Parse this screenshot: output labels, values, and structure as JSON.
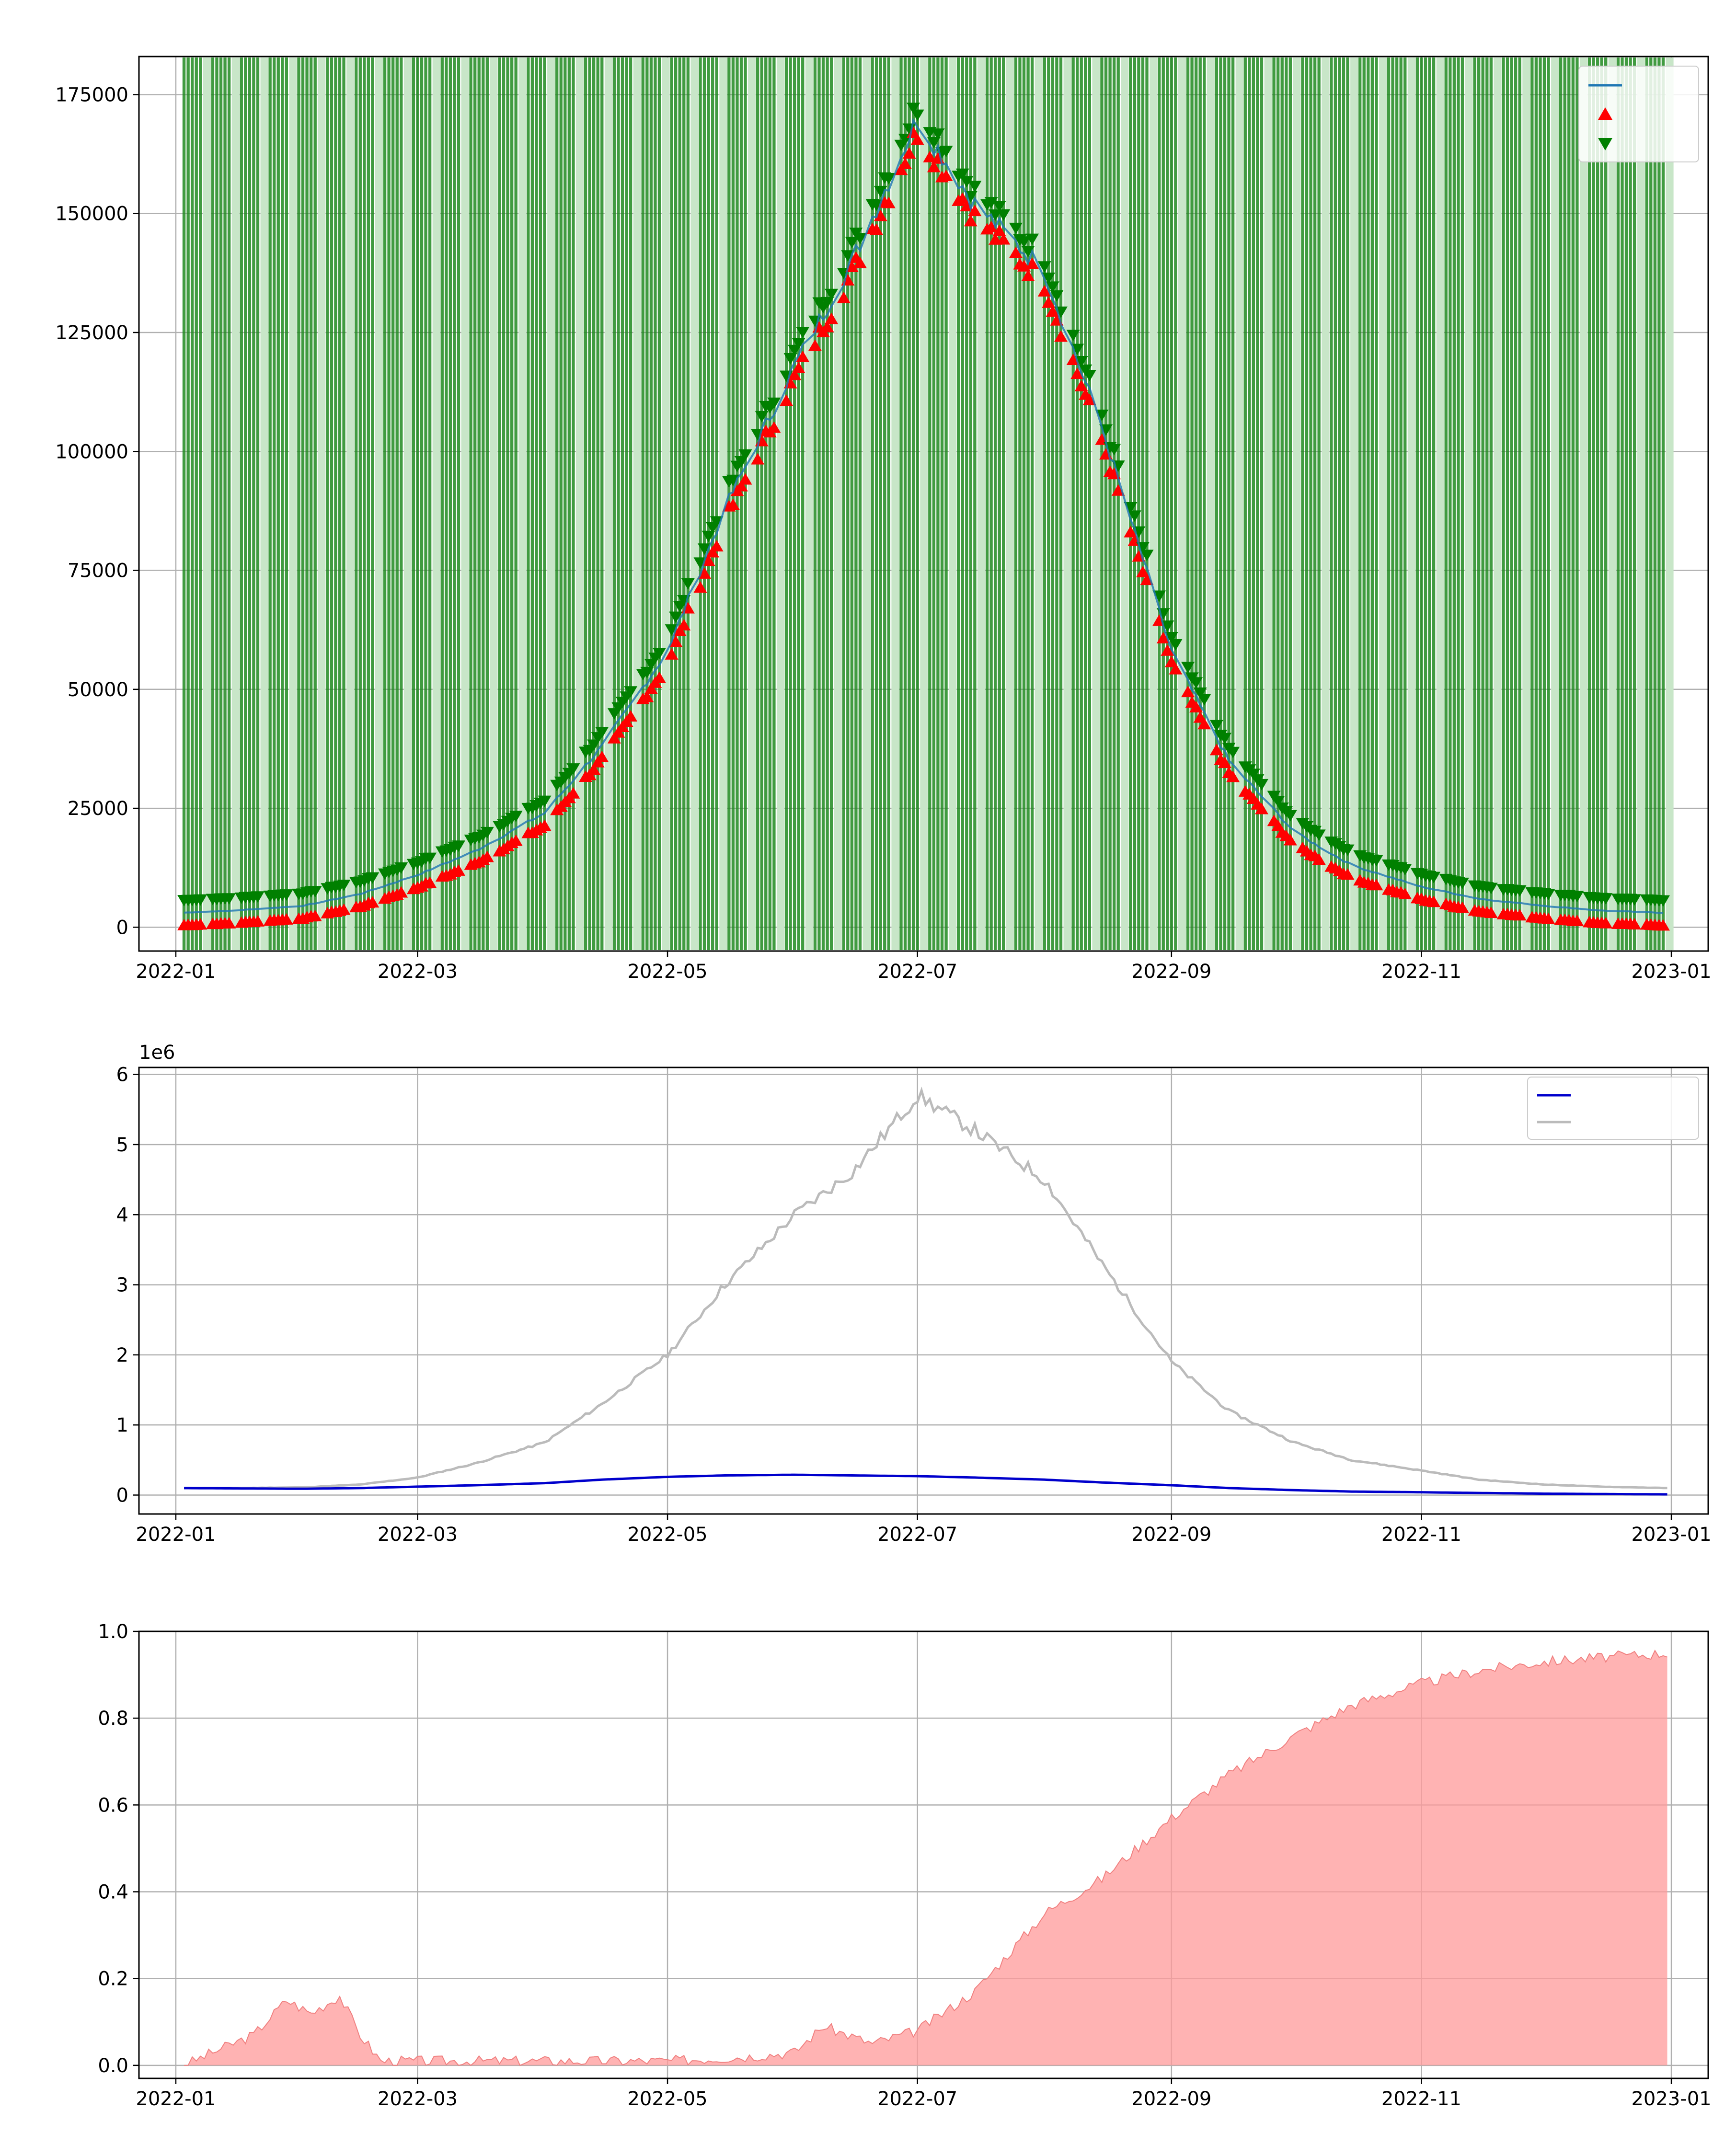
{
  "chart_data": [
    {
      "type": "line",
      "title": "",
      "xlabel": "",
      "ylabel": "",
      "ylim": [
        -5000,
        183000
      ],
      "xlim": [
        "2021-12-23",
        "2023-01-10"
      ],
      "x_ticks": [
        "2022-01",
        "2022-03",
        "2022-05",
        "2022-07",
        "2022-09",
        "2022-11",
        "2023-01"
      ],
      "y_ticks": [
        "0",
        "25000",
        "50000",
        "75000",
        "100000",
        "125000",
        "150000",
        "175000"
      ],
      "y_tick_values": [
        0,
        25000,
        50000,
        75000,
        100000,
        125000,
        150000,
        175000
      ],
      "grid": true,
      "legend_position": "top-right",
      "legend": [
        "",
        "",
        ""
      ],
      "series": [
        {
          "key": "close",
          "color": "#1f77b4",
          "style": "line"
        },
        {
          "key": "low_markers",
          "color": "#ff0000",
          "style": "triangle-up"
        },
        {
          "key": "high_markers",
          "color": "#008000",
          "style": "triangle-down"
        }
      ],
      "shaded_bands": {
        "color": "#008000",
        "description_count": 52
      },
      "x": [
        "2022-01-01",
        "2022-01-15",
        "2022-02-01",
        "2022-02-15",
        "2022-03-01",
        "2022-03-15",
        "2022-04-01",
        "2022-04-15",
        "2022-05-01",
        "2022-05-15",
        "2022-06-01",
        "2022-06-15",
        "2022-07-01",
        "2022-07-15",
        "2022-08-01",
        "2022-08-15",
        "2022-09-01",
        "2022-09-15",
        "2022-10-01",
        "2022-10-15",
        "2022-11-01",
        "2022-11-15",
        "2022-12-01",
        "2022-12-15",
        "2022-12-31"
      ],
      "values": [
        3000,
        3500,
        4500,
        7000,
        11000,
        16000,
        24000,
        38000,
        58000,
        88000,
        118000,
        140000,
        170000,
        152000,
        138000,
        105000,
        58000,
        35000,
        20000,
        13000,
        8500,
        6000,
        4500,
        3500,
        3000
      ]
    },
    {
      "type": "line",
      "xlabel": "",
      "ylabel": "",
      "y_scale_label": "1e6",
      "ylim": [
        -0.27,
        6.1
      ],
      "xlim": [
        "2021-12-23",
        "2023-01-10"
      ],
      "x_ticks": [
        "2022-01",
        "2022-03",
        "2022-05",
        "2022-07",
        "2022-09",
        "2022-11",
        "2023-01"
      ],
      "y_ticks": [
        "0",
        "1",
        "2",
        "3",
        "4",
        "5",
        "6"
      ],
      "y_tick_values": [
        0,
        1,
        2,
        3,
        4,
        5,
        6
      ],
      "grid": true,
      "legend_position": "top-right",
      "legend": [
        "",
        ""
      ],
      "x": [
        "2022-01-01",
        "2022-01-15",
        "2022-02-01",
        "2022-02-15",
        "2022-03-01",
        "2022-03-15",
        "2022-04-01",
        "2022-04-15",
        "2022-05-01",
        "2022-05-15",
        "2022-06-01",
        "2022-06-15",
        "2022-07-01",
        "2022-07-15",
        "2022-08-01",
        "2022-08-15",
        "2022-09-01",
        "2022-09-15",
        "2022-10-01",
        "2022-10-15",
        "2022-11-01",
        "2022-11-15",
        "2022-12-01",
        "2022-12-15",
        "2022-12-31"
      ],
      "series": [
        {
          "color": "#0000cc",
          "values": [
            0.1,
            0.095,
            0.09,
            0.1,
            0.12,
            0.14,
            0.17,
            0.22,
            0.26,
            0.28,
            0.29,
            0.28,
            0.27,
            0.25,
            0.22,
            0.18,
            0.14,
            0.1,
            0.07,
            0.05,
            0.04,
            0.03,
            0.02,
            0.015,
            0.01
          ]
        },
        {
          "color": "#bbbbbb",
          "values": [
            0.1,
            0.1,
            0.11,
            0.15,
            0.25,
            0.45,
            0.75,
            1.3,
            2.0,
            3.0,
            4.0,
            4.6,
            5.7,
            5.2,
            4.5,
            3.3,
            1.9,
            1.2,
            0.75,
            0.5,
            0.35,
            0.22,
            0.15,
            0.12,
            0.1
          ]
        }
      ]
    },
    {
      "type": "area",
      "title": "",
      "xlabel": "",
      "ylabel": "",
      "ylim": [
        -0.03,
        1.0
      ],
      "xlim": [
        "2021-12-23",
        "2023-01-10"
      ],
      "x_ticks": [
        "2022-01",
        "2022-03",
        "2022-05",
        "2022-07",
        "2022-09",
        "2022-11",
        "2023-01"
      ],
      "y_ticks": [
        "0.0",
        "0.2",
        "0.4",
        "0.6",
        "0.8",
        "1.0"
      ],
      "y_tick_values": [
        0,
        0.2,
        0.4,
        0.6,
        0.8,
        1.0
      ],
      "grid": true,
      "color": "#ff9999",
      "x": [
        "2022-01-03",
        "2022-01-10",
        "2022-01-20",
        "2022-01-28",
        "2022-02-03",
        "2022-02-10",
        "2022-02-15",
        "2022-02-20",
        "2022-03-01",
        "2022-03-20",
        "2022-04-10",
        "2022-05-01",
        "2022-05-20",
        "2022-06-01",
        "2022-06-08",
        "2022-06-20",
        "2022-07-01",
        "2022-07-15",
        "2022-08-01",
        "2022-08-15",
        "2022-09-01",
        "2022-09-15",
        "2022-10-01",
        "2022-10-15",
        "2022-11-01",
        "2022-11-15",
        "2022-12-01",
        "2022-12-15",
        "2022-12-31"
      ],
      "values": [
        0.0,
        0.03,
        0.07,
        0.15,
        0.12,
        0.16,
        0.07,
        0.01,
        0.01,
        0.01,
        0.01,
        0.01,
        0.02,
        0.03,
        0.09,
        0.05,
        0.08,
        0.17,
        0.35,
        0.43,
        0.57,
        0.67,
        0.76,
        0.83,
        0.88,
        0.91,
        0.93,
        0.94,
        0.95
      ]
    }
  ]
}
